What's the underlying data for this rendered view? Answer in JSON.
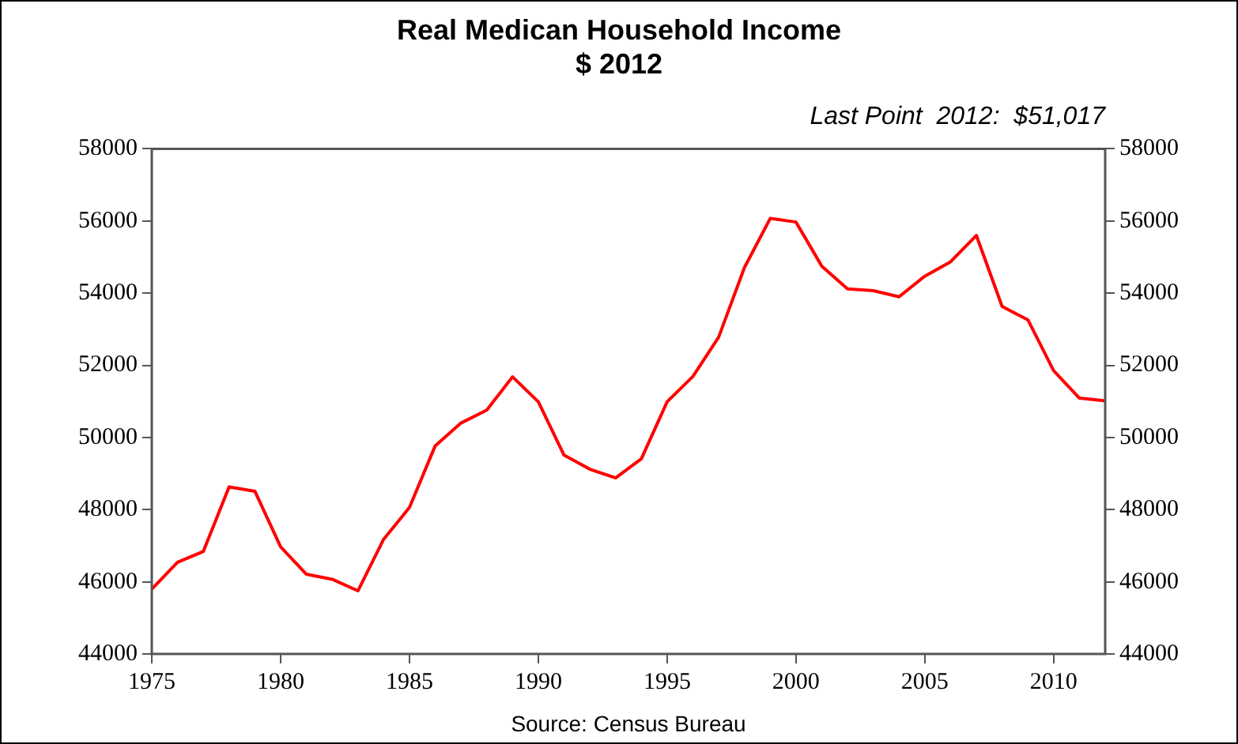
{
  "chart_data": {
    "type": "line",
    "title": "Real Medican Household Income",
    "subtitle": "$ 2012",
    "annotations": [
      "Last Point  2012:  $51,017",
      "Source: Census Bureau"
    ],
    "x": [
      1975,
      1976,
      1977,
      1978,
      1979,
      1980,
      1981,
      1982,
      1983,
      1984,
      1985,
      1986,
      1987,
      1988,
      1989,
      1990,
      1991,
      1992,
      1993,
      1994,
      1995,
      1996,
      1997,
      1998,
      1999,
      2000,
      2001,
      2002,
      2003,
      2004,
      2005,
      2006,
      2007,
      2008,
      2009,
      2010,
      2011,
      2012
    ],
    "series": [
      {
        "color": "#ff0000",
        "values": [
          45800,
          46540,
          46840,
          48630,
          48510,
          46970,
          46210,
          46070,
          45750,
          47180,
          48060,
          49770,
          50400,
          50760,
          51680,
          50990,
          49510,
          49120,
          48880,
          49410,
          50990,
          51690,
          52780,
          54710,
          56070,
          55970,
          54750,
          54120,
          54070,
          53900,
          54470,
          54870,
          55600,
          53630,
          53260,
          51850,
          51090,
          51017
        ]
      }
    ],
    "xlim": [
      1975,
      2012
    ],
    "xticks": [
      1975,
      1980,
      1985,
      1990,
      1995,
      2000,
      2005,
      2010
    ],
    "ylim": [
      44000,
      58000
    ],
    "yticks": [
      44000,
      46000,
      48000,
      50000,
      52000,
      54000,
      56000,
      58000
    ],
    "y2lim": [
      44000,
      58000
    ],
    "y2ticks": [
      44000,
      46000,
      48000,
      50000,
      52000,
      54000,
      56000,
      58000
    ],
    "legend": false,
    "marker": "none",
    "line_style": "solid"
  }
}
